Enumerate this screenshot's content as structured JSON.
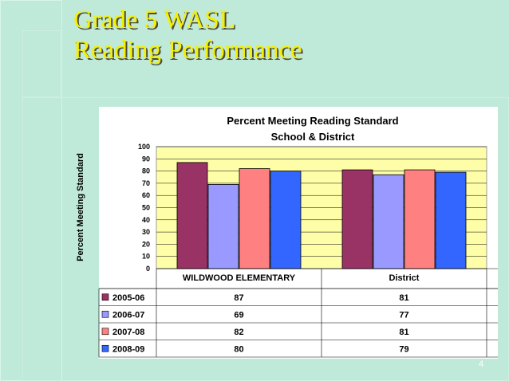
{
  "slide": {
    "title_line1": "Grade 5 WASL",
    "title_line2": "Reading Performance",
    "page_number": "4"
  },
  "colors": {
    "background": "#bfe9d9",
    "title": "#f5f000",
    "plot_area": "#fefea8"
  },
  "chart_data": {
    "type": "bar",
    "title": "Percent Meeting Reading Standard",
    "subtitle": "School & District",
    "ylabel": "Percent Meeting Standard",
    "xlabel": "",
    "ylim": [
      0,
      100
    ],
    "yticks": [
      0,
      10,
      20,
      30,
      40,
      50,
      60,
      70,
      80,
      90,
      100
    ],
    "categories": [
      "WILDWOOD ELEMENTARY",
      "District"
    ],
    "series": [
      {
        "name": "2005-06",
        "values": [
          87,
          81
        ],
        "color": "#993366"
      },
      {
        "name": "2006-07",
        "values": [
          69,
          77
        ],
        "color": "#9999ff"
      },
      {
        "name": "2007-08",
        "values": [
          82,
          81
        ],
        "color": "#ff8080"
      },
      {
        "name": "2008-09",
        "values": [
          80,
          79
        ],
        "color": "#3366ff"
      }
    ],
    "grid": true,
    "legend": "data-table"
  }
}
